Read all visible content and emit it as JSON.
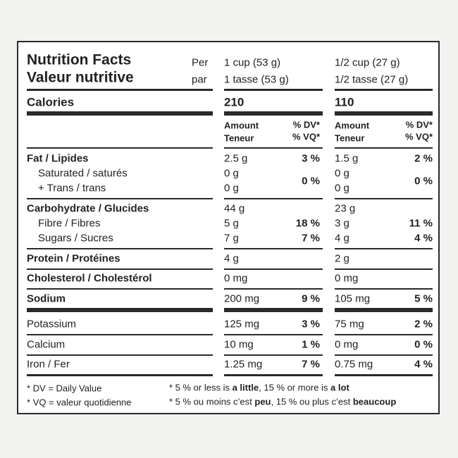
{
  "header": {
    "title_en": "Nutrition Facts",
    "title_fr": "Valeur nutritive",
    "per_en": "Per",
    "per_fr": "par",
    "servings": [
      {
        "en": "1 cup (53 g)",
        "fr": "1 tasse (53 g)"
      },
      {
        "en": "1/2 cup (27 g)",
        "fr": "1/2 tasse (27 g)"
      }
    ]
  },
  "calories": {
    "label": "Calories",
    "values": [
      "210",
      "110"
    ]
  },
  "columns": {
    "amount_en": "Amount",
    "amount_fr": "Teneur",
    "dv_en": "% DV*",
    "dv_fr": "% VQ*"
  },
  "rows": [
    {
      "label": "Fat / Lipides",
      "amounts": [
        "2.5 g",
        "1.5 g"
      ],
      "dv": [
        "3 %",
        "2 %"
      ]
    },
    {
      "label": "Saturated / saturés",
      "amounts": [
        "0 g",
        "0 g"
      ],
      "dv": [
        "0 %",
        "0 %"
      ]
    },
    {
      "label": "+ Trans / trans",
      "amounts": [
        "0 g",
        "0 g"
      ]
    },
    {
      "label": "Carbohydrate / Glucides",
      "amounts": [
        "44 g",
        "23 g"
      ]
    },
    {
      "label": "Fibre / Fibres",
      "amounts": [
        "5 g",
        "3 g"
      ],
      "dv": [
        "18 %",
        "11 %"
      ]
    },
    {
      "label": "Sugars / Sucres",
      "amounts": [
        "7 g",
        "4 g"
      ],
      "dv": [
        "7 %",
        "4 %"
      ]
    },
    {
      "label": "Protein / Protéines",
      "amounts": [
        "4 g",
        "2 g"
      ]
    },
    {
      "label": "Cholesterol / Cholestérol",
      "amounts": [
        "0 mg",
        "0 mg"
      ]
    },
    {
      "label": "Sodium",
      "amounts": [
        "200 mg",
        "105 mg"
      ],
      "dv": [
        "9 %",
        "5 %"
      ]
    },
    {
      "label": "Potassium",
      "amounts": [
        "125 mg",
        "75 mg"
      ],
      "dv": [
        "3 %",
        "2 %"
      ]
    },
    {
      "label": "Calcium",
      "amounts": [
        "10 mg",
        "0 mg"
      ],
      "dv": [
        "1 %",
        "0 %"
      ]
    },
    {
      "label": "Iron / Fer",
      "amounts": [
        "1.25 mg",
        "0.75 mg"
      ],
      "dv": [
        "7 %",
        "4 %"
      ]
    }
  ],
  "footnotes": {
    "dv": "* DV = Daily Value",
    "vq": "* VQ = valeur quotidienne",
    "en": [
      "* 5 % or less is ",
      "a little",
      ", 15 % or more is ",
      "a lot"
    ],
    "fr": [
      "* 5 % ou moins c’est ",
      "peu",
      ", 15 % ou plus c’est ",
      "beaucoup"
    ]
  }
}
